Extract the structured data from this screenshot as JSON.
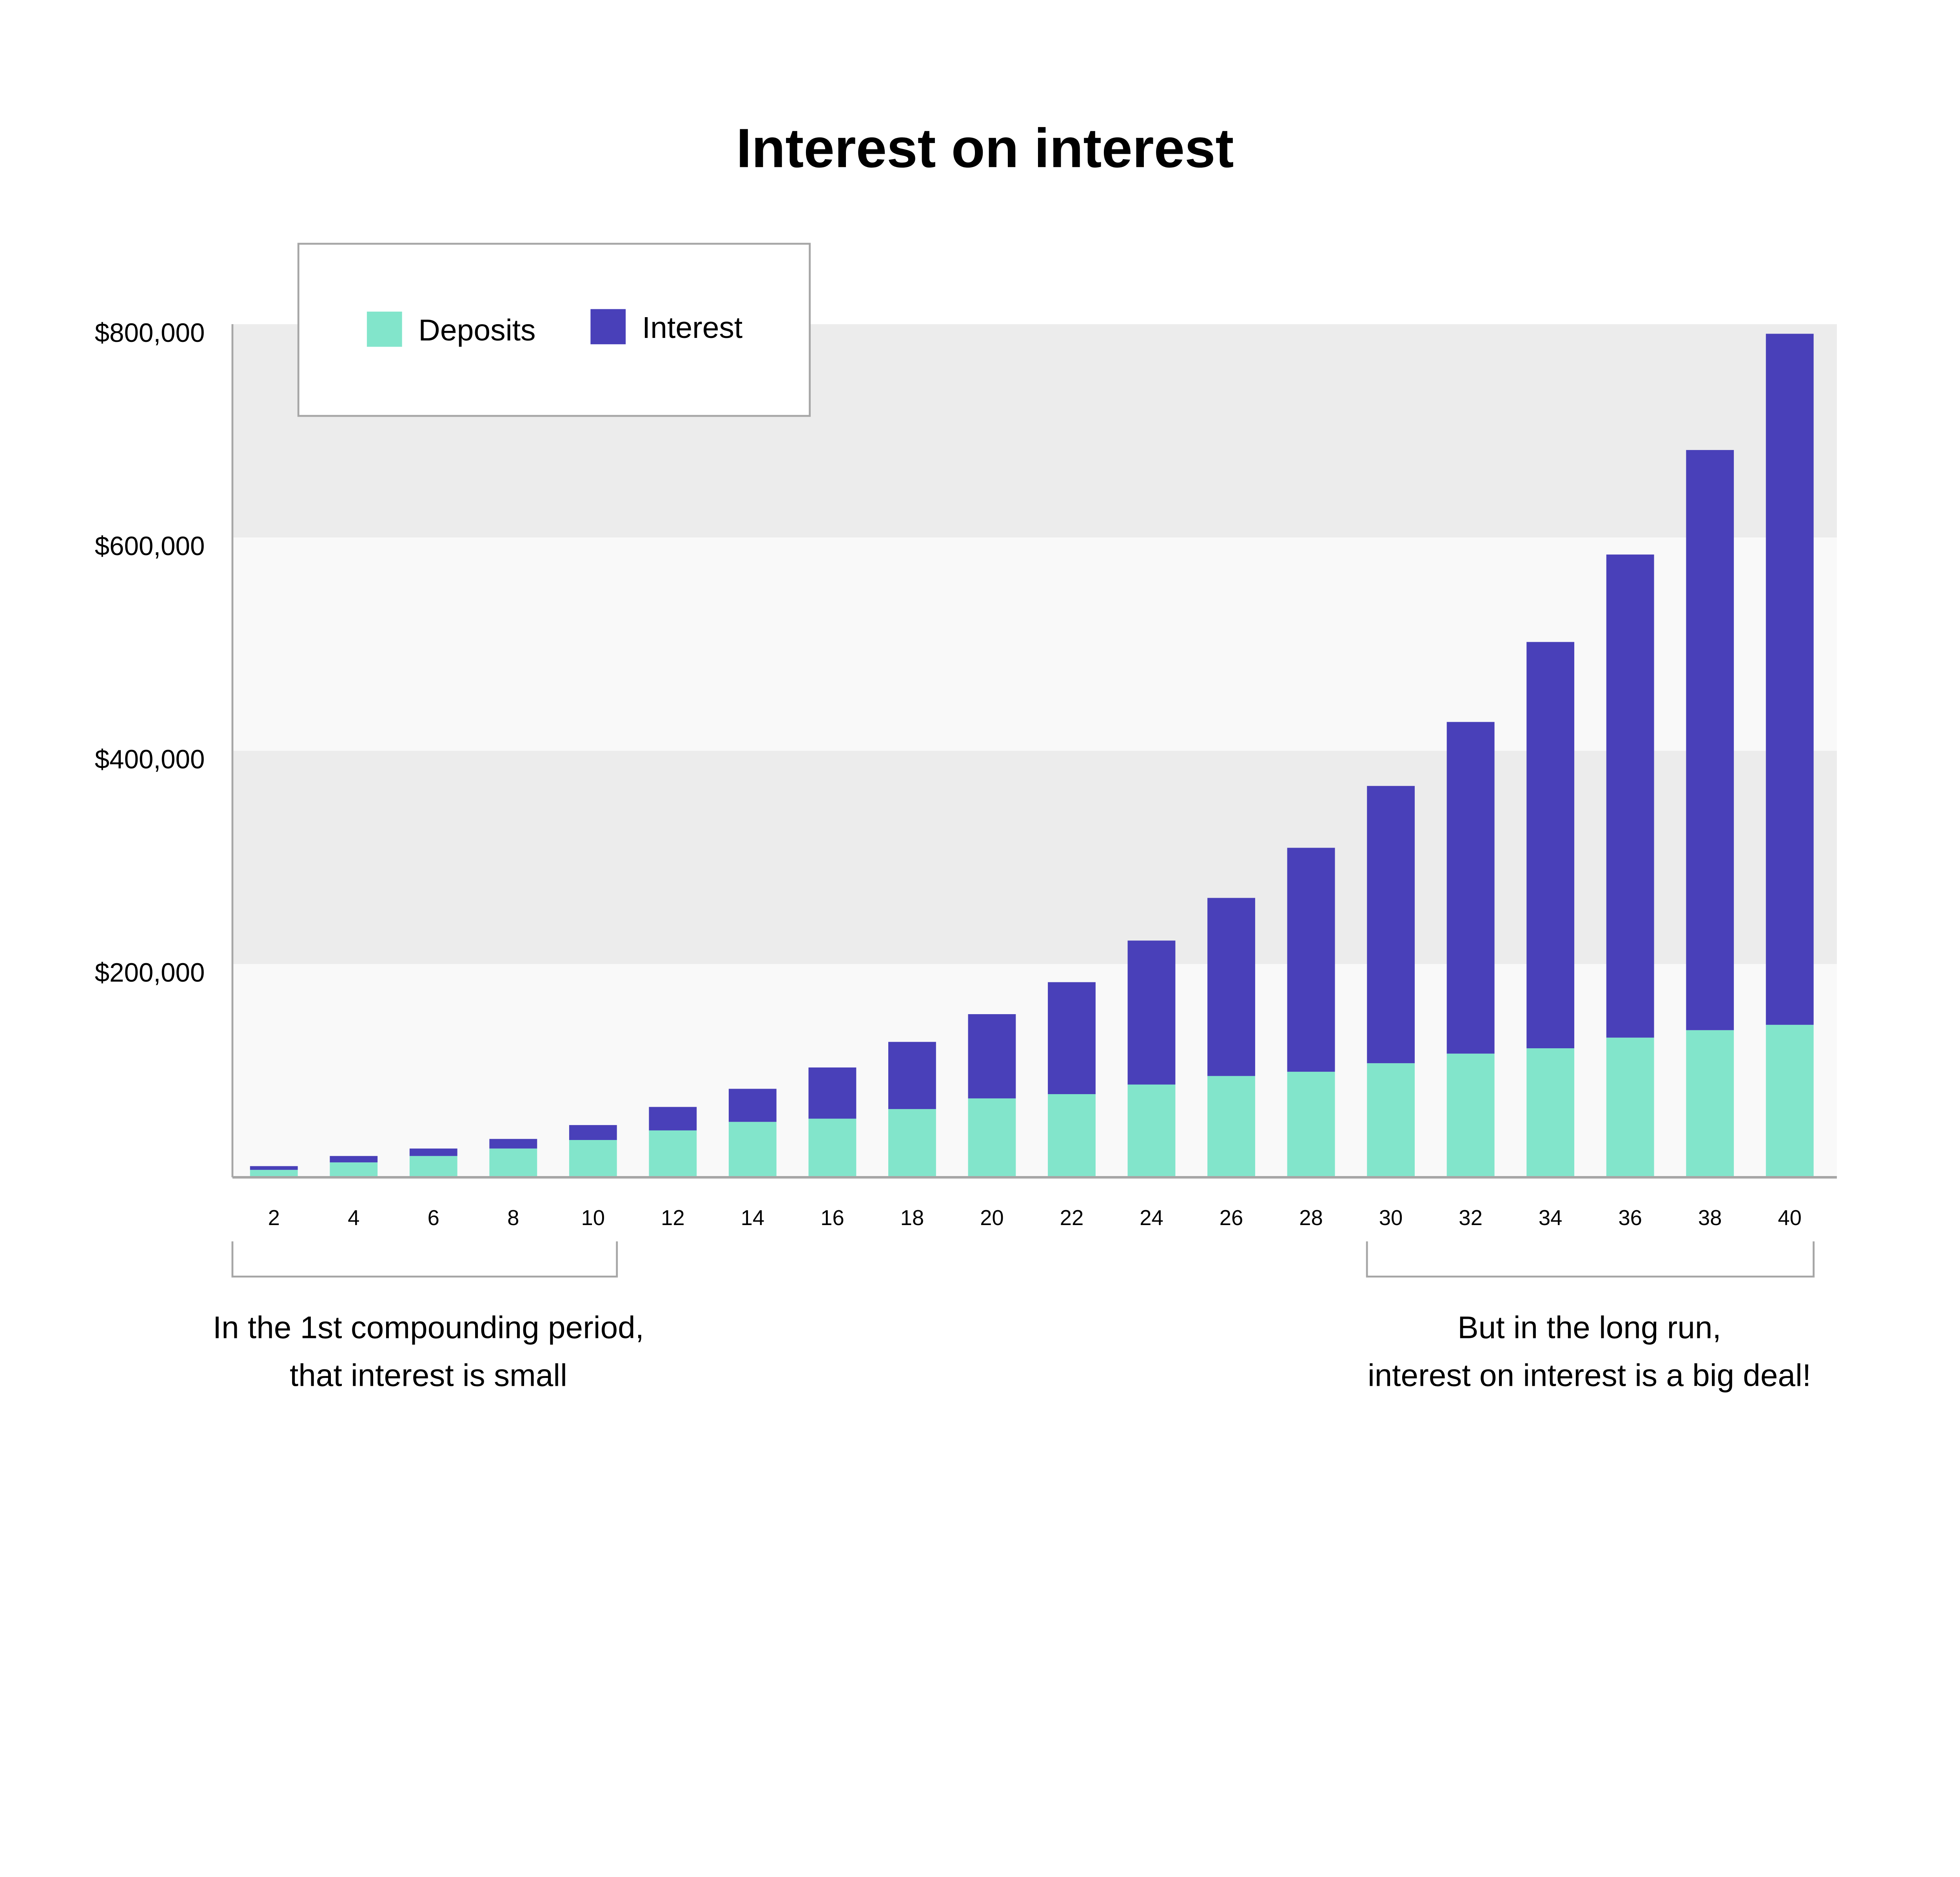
{
  "chart_data": {
    "type": "bar",
    "stacked": true,
    "title": "Interest on interest",
    "xlabel": "",
    "ylabel": "",
    "categories": [
      "2",
      "4",
      "6",
      "8",
      "10",
      "12",
      "14",
      "16",
      "18",
      "20",
      "22",
      "24",
      "26",
      "28",
      "30",
      "32",
      "34",
      "36",
      "38",
      "40"
    ],
    "series": [
      {
        "name": "Deposits",
        "color": "#82e5cb",
        "values": [
          7000,
          14000,
          20000,
          27000,
          35000,
          44000,
          52000,
          55000,
          64000,
          74000,
          78000,
          87000,
          95000,
          99000,
          107000,
          116000,
          121000,
          131000,
          138000,
          143000
        ]
      },
      {
        "name": "Interest",
        "color": "#4940b9",
        "values": [
          3500,
          6000,
          7000,
          9000,
          14000,
          22000,
          31000,
          48000,
          63000,
          79000,
          105000,
          135000,
          167000,
          210000,
          260000,
          311000,
          381000,
          453000,
          544000,
          648000
        ]
      }
    ],
    "ylim": [
      0,
      800000
    ],
    "yticks": [
      {
        "value": 200000,
        "label": "$200,000"
      },
      {
        "value": 400000,
        "label": "$400,000"
      },
      {
        "value": 600000,
        "label": "$600,000"
      },
      {
        "value": 800000,
        "label": "$800,000"
      }
    ],
    "grid": "alternating horizontal bands",
    "band_colors": [
      "#f9f9f9",
      "#ececec"
    ],
    "legend": {
      "position": "top-left",
      "items": [
        "Deposits",
        "Interest"
      ]
    },
    "annotations": [
      {
        "range": [
          "2",
          "10"
        ],
        "lines": [
          "In the 1st compounding period,",
          "that interest is small"
        ]
      },
      {
        "range": [
          "30",
          "40"
        ],
        "lines": [
          "But in the long run,",
          "interest on interest is a big deal!"
        ]
      }
    ]
  }
}
